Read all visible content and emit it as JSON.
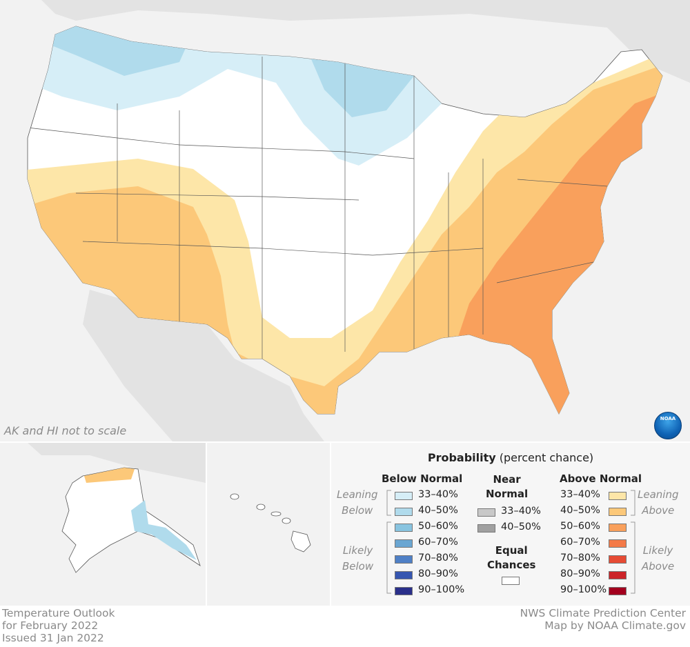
{
  "map": {
    "note": "AK and HI not to scale",
    "footer_left": [
      "Temperature Outlook",
      "for February 2022",
      "Issued 31 Jan 2022"
    ],
    "footer_right": [
      "NWS Climate Prediction Center",
      "Map by NOAA Climate.gov"
    ],
    "logo_icon": "noaa-logo-icon"
  },
  "legend": {
    "title_bold": "Probability",
    "title_rest": " (percent chance)",
    "below": {
      "header": "Below Normal",
      "leaning_label": [
        "Leaning",
        "Below"
      ],
      "likely_label": [
        "Likely",
        "Below"
      ],
      "items": [
        {
          "label": "33–40%",
          "color": "#d6eef7"
        },
        {
          "label": "40–50%",
          "color": "#b0dbec"
        },
        {
          "label": "50–60%",
          "color": "#88c4e0"
        },
        {
          "label": "60–70%",
          "color": "#6aa6d2"
        },
        {
          "label": "70–80%",
          "color": "#4f80c6"
        },
        {
          "label": "80–90%",
          "color": "#3656b0"
        },
        {
          "label": "90–100%",
          "color": "#2a2f8a"
        }
      ]
    },
    "near": {
      "header": [
        "Near",
        "Normal"
      ],
      "items": [
        {
          "label": "33–40%",
          "color": "#c8c8c8"
        },
        {
          "label": "40–50%",
          "color": "#a0a0a0"
        }
      ],
      "equal_header": [
        "Equal",
        "Chances"
      ],
      "equal_color": "#ffffff"
    },
    "above": {
      "header": "Above Normal",
      "leaning_label": [
        "Leaning",
        "Above"
      ],
      "likely_label": [
        "Likely",
        "Above"
      ],
      "items": [
        {
          "label": "33–40%",
          "color": "#fde6a8"
        },
        {
          "label": "40–50%",
          "color": "#fcc879"
        },
        {
          "label": "50–60%",
          "color": "#f9a05c"
        },
        {
          "label": "60–70%",
          "color": "#f47a48"
        },
        {
          "label": "70–80%",
          "color": "#e64b34"
        },
        {
          "label": "80–90%",
          "color": "#cc2429"
        },
        {
          "label": "90–100%",
          "color": "#a3001e"
        }
      ]
    }
  }
}
